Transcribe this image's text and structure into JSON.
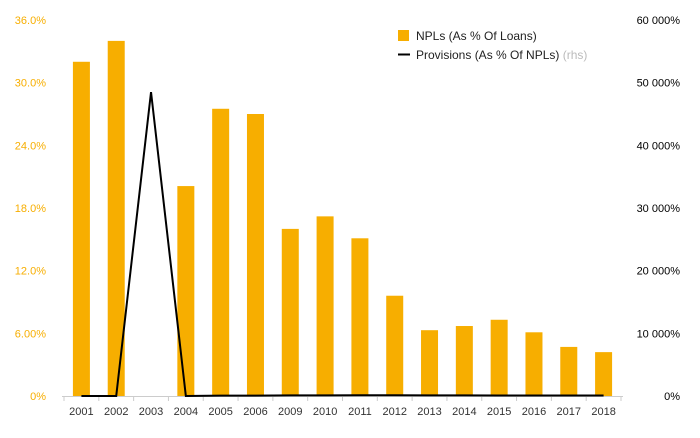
{
  "chart_data": {
    "type": "bar",
    "title": "",
    "xlabel": "",
    "ylabel": "",
    "categories": [
      "2001",
      "2002",
      "2003",
      "2004",
      "2005",
      "2006",
      "2009",
      "2010",
      "2011",
      "2012",
      "2013",
      "2014",
      "2015",
      "2016",
      "2017",
      "2018"
    ],
    "series": [
      {
        "name": "NPLs (As % Of Loans)",
        "type": "bar",
        "axis": "left",
        "color": "#F7AE00",
        "values": [
          32.0,
          34.0,
          null,
          20.1,
          27.5,
          27.0,
          16.0,
          17.2,
          15.1,
          9.6,
          6.3,
          6.7,
          7.3,
          6.1,
          4.7,
          4.2
        ]
      },
      {
        "name": "Provisions (As % Of NPLs)",
        "legend_suffix": "(rhs)",
        "type": "line",
        "axis": "right",
        "color": "#000000",
        "values": [
          0,
          0,
          48500,
          0,
          60,
          60,
          100,
          100,
          130,
          120,
          100,
          100,
          90,
          90,
          80,
          80
        ]
      }
    ],
    "y_left": {
      "ylim": [
        0,
        36
      ],
      "ticks": [
        0,
        6,
        12,
        18,
        24,
        30,
        36
      ],
      "tick_labels": [
        "0%",
        "6.00%",
        "12.0%",
        "18.0%",
        "24.0%",
        "30.0%",
        "36.0%"
      ],
      "tick_color": "#F7AE00"
    },
    "y_right": {
      "ylim": [
        0,
        60000
      ],
      "ticks": [
        0,
        10000,
        20000,
        30000,
        40000,
        50000,
        60000
      ],
      "tick_labels": [
        "0%",
        "10 000%",
        "20 000%",
        "30 000%",
        "40 000%",
        "50 000%",
        "60 000%"
      ],
      "tick_color": "#000000"
    },
    "grid": false,
    "legend_position": "top-right"
  }
}
